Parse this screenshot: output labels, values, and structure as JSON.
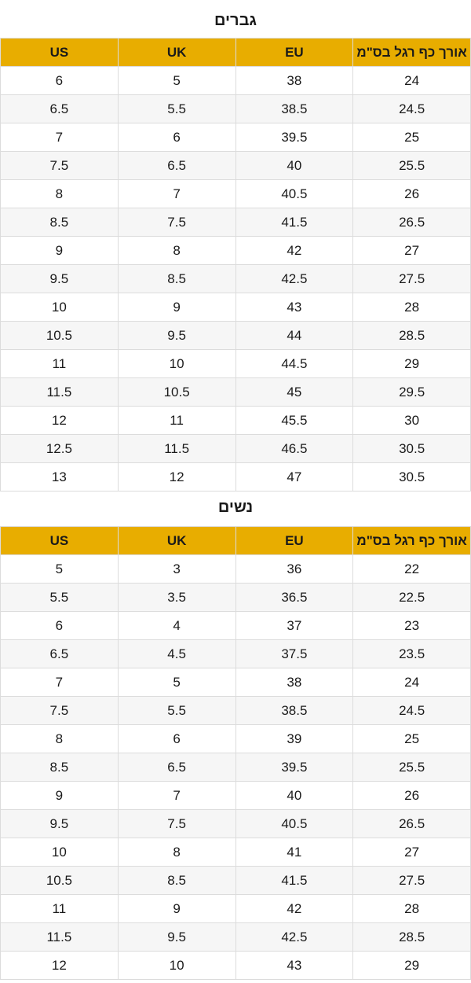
{
  "men": {
    "title": "גברים",
    "headers": [
      "US",
      "UK",
      "EU",
      "אורך כף רגל בס\"מ"
    ],
    "rows": [
      [
        "6",
        "5",
        "38",
        "24"
      ],
      [
        "6.5",
        "5.5",
        "38.5",
        "24.5"
      ],
      [
        "7",
        "6",
        "39.5",
        "25"
      ],
      [
        "7.5",
        "6.5",
        "40",
        "25.5"
      ],
      [
        "8",
        "7",
        "40.5",
        "26"
      ],
      [
        "8.5",
        "7.5",
        "41.5",
        "26.5"
      ],
      [
        "9",
        "8",
        "42",
        "27"
      ],
      [
        "9.5",
        "8.5",
        "42.5",
        "27.5"
      ],
      [
        "10",
        "9",
        "43",
        "28"
      ],
      [
        "10.5",
        "9.5",
        "44",
        "28.5"
      ],
      [
        "11",
        "10",
        "44.5",
        "29"
      ],
      [
        "11.5",
        "10.5",
        "45",
        "29.5"
      ],
      [
        "12",
        "11",
        "45.5",
        "30"
      ],
      [
        "12.5",
        "11.5",
        "46.5",
        "30.5"
      ],
      [
        "13",
        "12",
        "47",
        "30.5"
      ]
    ]
  },
  "women": {
    "title": "נשים",
    "headers": [
      "US",
      "UK",
      "EU",
      "אורך כף רגל בס\"מ"
    ],
    "rows": [
      [
        "5",
        "3",
        "36",
        "22"
      ],
      [
        "5.5",
        "3.5",
        "36.5",
        "22.5"
      ],
      [
        "6",
        "4",
        "37",
        "23"
      ],
      [
        "6.5",
        "4.5",
        "37.5",
        "23.5"
      ],
      [
        "7",
        "5",
        "38",
        "24"
      ],
      [
        "7.5",
        "5.5",
        "38.5",
        "24.5"
      ],
      [
        "8",
        "6",
        "39",
        "25"
      ],
      [
        "8.5",
        "6.5",
        "39.5",
        "25.5"
      ],
      [
        "9",
        "7",
        "40",
        "26"
      ],
      [
        "9.5",
        "7.5",
        "40.5",
        "26.5"
      ],
      [
        "10",
        "8",
        "41",
        "27"
      ],
      [
        "10.5",
        "8.5",
        "41.5",
        "27.5"
      ],
      [
        "11",
        "9",
        "42",
        "28"
      ],
      [
        "11.5",
        "9.5",
        "42.5",
        "28.5"
      ],
      [
        "12",
        "10",
        "43",
        "29"
      ]
    ]
  },
  "colors": {
    "header_bg": "#e8ad00",
    "stripe_bg": "#f6f6f6",
    "border": "#dcdcdc"
  }
}
